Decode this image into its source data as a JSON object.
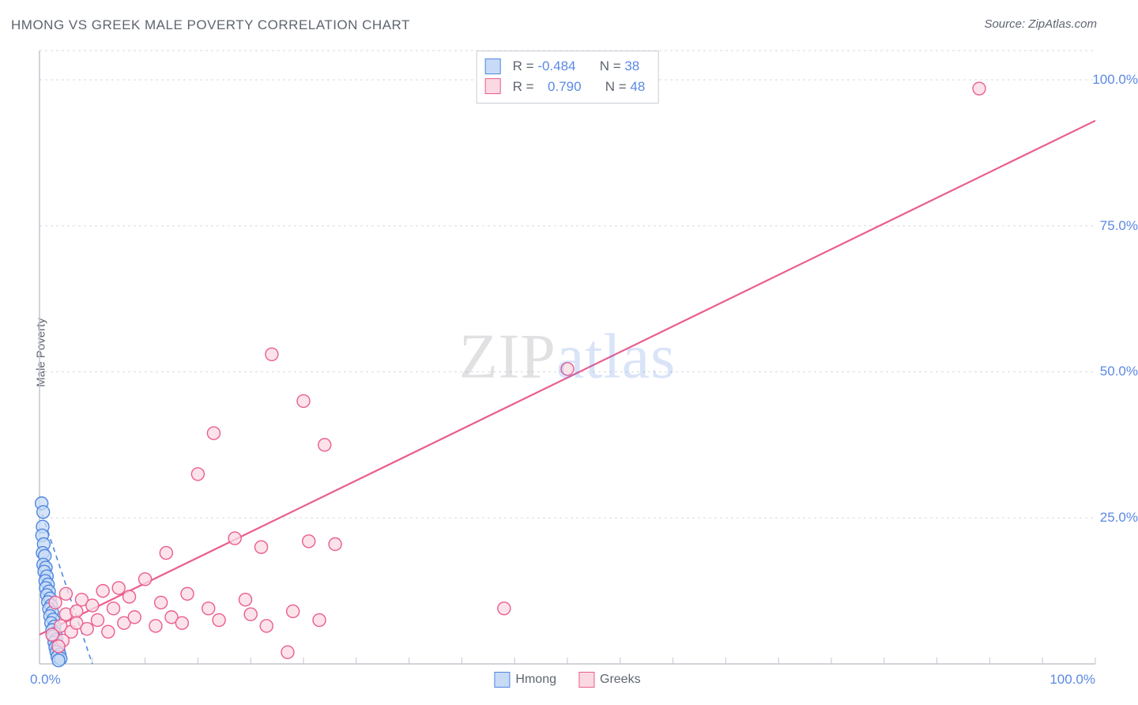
{
  "title": "HMONG VS GREEK MALE POVERTY CORRELATION CHART",
  "source_label": "Source: ZipAtlas.com",
  "yaxis_label": "Male Poverty",
  "watermark": {
    "part1": "ZIP",
    "part2": "atlas"
  },
  "chart": {
    "type": "scatter",
    "xlim": [
      0,
      100
    ],
    "ylim": [
      0,
      105
    ],
    "x_ticks_minor_step": 5,
    "y_major_ticks": [
      25,
      50,
      75,
      100
    ],
    "y_tick_labels": [
      "25.0%",
      "50.0%",
      "75.0%",
      "100.0%"
    ],
    "x_tick_label_left": "0.0%",
    "x_tick_label_right": "100.0%",
    "background_color": "#ffffff",
    "grid_color": "#d7dae0",
    "axis_color": "#c2c6cd",
    "marker_radius": 8,
    "marker_stroke_width": 1.4,
    "series": [
      {
        "name": "Hmong",
        "legend_label": "Hmong",
        "fill": "#c7dbf6",
        "stroke": "#4f86e0",
        "R_label": "R = ",
        "R_value": "-0.484",
        "N_label": "N = ",
        "N_value": "38",
        "trend": {
          "x1": 0.0,
          "y1": 27.0,
          "x2": 5.0,
          "y2": 0.0,
          "color": "#4f86e0",
          "dash": "6,5",
          "width": 1.6
        },
        "points": [
          [
            0.2,
            27.5
          ],
          [
            0.35,
            26.0
          ],
          [
            0.3,
            23.5
          ],
          [
            0.25,
            22.0
          ],
          [
            0.4,
            20.5
          ],
          [
            0.3,
            19.0
          ],
          [
            0.5,
            18.5
          ],
          [
            0.35,
            17.0
          ],
          [
            0.6,
            16.5
          ],
          [
            0.45,
            15.8
          ],
          [
            0.7,
            15.0
          ],
          [
            0.55,
            14.2
          ],
          [
            0.8,
            13.6
          ],
          [
            0.6,
            13.0
          ],
          [
            0.9,
            12.4
          ],
          [
            0.7,
            11.8
          ],
          [
            1.0,
            11.2
          ],
          [
            0.8,
            10.6
          ],
          [
            1.1,
            10.0
          ],
          [
            0.9,
            9.4
          ],
          [
            1.2,
            8.8
          ],
          [
            1.0,
            8.2
          ],
          [
            1.3,
            7.6
          ],
          [
            1.1,
            7.0
          ],
          [
            1.4,
            6.4
          ],
          [
            1.2,
            5.8
          ],
          [
            1.5,
            5.2
          ],
          [
            1.3,
            4.7
          ],
          [
            1.6,
            4.2
          ],
          [
            1.4,
            3.7
          ],
          [
            1.7,
            3.2
          ],
          [
            1.5,
            2.8
          ],
          [
            1.8,
            2.4
          ],
          [
            1.6,
            2.0
          ],
          [
            1.9,
            1.6
          ],
          [
            1.7,
            1.2
          ],
          [
            2.0,
            0.9
          ],
          [
            1.8,
            0.6
          ]
        ]
      },
      {
        "name": "Greeks",
        "legend_label": "Greeks",
        "fill": "#fbd9e3",
        "stroke": "#ea5d8f",
        "R_label": "R = ",
        "R_value": "0.790",
        "N_label": "N = ",
        "N_value": "48",
        "trend": {
          "x1": 0.0,
          "y1": 5.0,
          "x2": 100.0,
          "y2": 93.0,
          "color": "#ea5d8f",
          "dash": "",
          "width": 2.2
        },
        "points": [
          [
            1.5,
            10.5
          ],
          [
            2.0,
            6.5
          ],
          [
            2.5,
            8.5
          ],
          [
            2.5,
            12.0
          ],
          [
            3.0,
            5.5
          ],
          [
            3.5,
            9.0
          ],
          [
            3.5,
            7.0
          ],
          [
            4.0,
            11.0
          ],
          [
            4.5,
            6.0
          ],
          [
            5.0,
            10.0
          ],
          [
            5.5,
            7.5
          ],
          [
            6.0,
            12.5
          ],
          [
            6.5,
            5.5
          ],
          [
            7.0,
            9.5
          ],
          [
            7.5,
            13.0
          ],
          [
            8.0,
            7.0
          ],
          [
            8.5,
            11.5
          ],
          [
            9.0,
            8.0
          ],
          [
            10.0,
            14.5
          ],
          [
            11.0,
            6.5
          ],
          [
            11.5,
            10.5
          ],
          [
            12.0,
            19.0
          ],
          [
            12.5,
            8.0
          ],
          [
            13.5,
            7.0
          ],
          [
            14.0,
            12.0
          ],
          [
            15.0,
            32.5
          ],
          [
            16.0,
            9.5
          ],
          [
            16.5,
            39.5
          ],
          [
            17.0,
            7.5
          ],
          [
            18.5,
            21.5
          ],
          [
            19.5,
            11.0
          ],
          [
            20.0,
            8.5
          ],
          [
            21.0,
            20.0
          ],
          [
            21.5,
            6.5
          ],
          [
            22.0,
            53.0
          ],
          [
            24.0,
            9.0
          ],
          [
            25.0,
            45.0
          ],
          [
            25.5,
            21.0
          ],
          [
            26.5,
            7.5
          ],
          [
            27.0,
            37.5
          ],
          [
            28.0,
            20.5
          ],
          [
            23.5,
            2.0
          ],
          [
            44.0,
            9.5
          ],
          [
            50.0,
            50.5
          ],
          [
            89.0,
            98.5
          ],
          [
            2.2,
            4.0
          ],
          [
            1.8,
            3.0
          ],
          [
            1.2,
            5.0
          ]
        ]
      }
    ]
  }
}
